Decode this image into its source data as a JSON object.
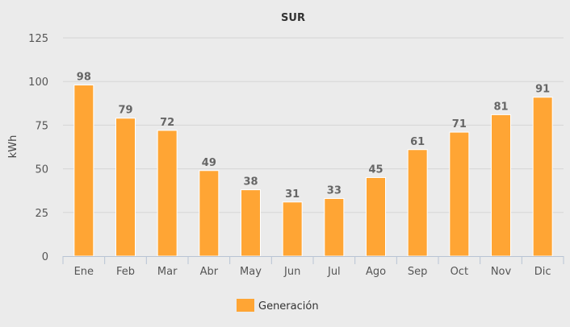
{
  "chart_data": {
    "type": "bar",
    "title": "SUR",
    "xlabel": "",
    "ylabel": "kWh",
    "categories": [
      "Ene",
      "Feb",
      "Mar",
      "Abr",
      "May",
      "Jun",
      "Jul",
      "Ago",
      "Sep",
      "Oct",
      "Nov",
      "Dic"
    ],
    "series": [
      {
        "name": "Generación",
        "values": [
          98,
          79,
          72,
          49,
          38,
          31,
          33,
          45,
          61,
          71,
          81,
          91
        ],
        "color": "#ffa534"
      }
    ],
    "ylim": [
      0,
      125
    ],
    "yticks": [
      0,
      25,
      50,
      75,
      100,
      125
    ],
    "grid": true,
    "legend_position": "bottom",
    "data_labels": true
  }
}
